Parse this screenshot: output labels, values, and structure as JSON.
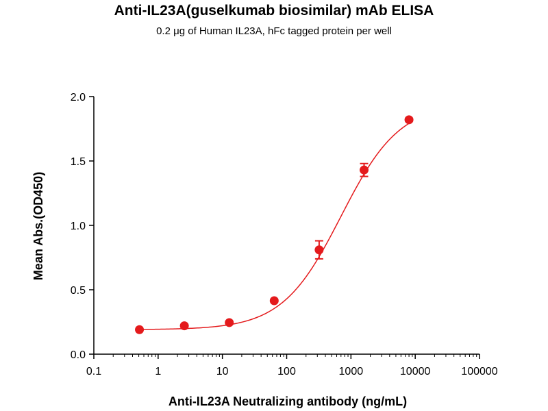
{
  "chart_data": {
    "type": "scatter",
    "title": "Anti-IL23A(guselkumab biosimilar) mAb ELISA",
    "subtitle": "0.2 μg of Human IL23A, hFc tagged protein per well",
    "xlabel": "Anti-IL23A Neutralizing antibody (ng/mL)",
    "ylabel": "Mean Abs.(OD450)",
    "x_scale": "log",
    "xlim": [
      0.1,
      100000
    ],
    "ylim": [
      0.0,
      2.0
    ],
    "x_tick_labels": [
      "0.1",
      "1",
      "10",
      "100",
      "1000",
      "10000",
      "100000"
    ],
    "y_tick_labels": [
      "0.0",
      "0.5",
      "1.0",
      "1.5",
      "2.0"
    ],
    "grid": false,
    "series": [
      {
        "color": "#e41a1c",
        "x": [
          0.512,
          2.56,
          12.8,
          64,
          320,
          1600,
          8000
        ],
        "y": [
          0.19,
          0.22,
          0.245,
          0.415,
          0.81,
          1.43,
          1.82
        ],
        "error": [
          0.01,
          0.01,
          0.01,
          0.01,
          0.07,
          0.05,
          0.01
        ],
        "fit": "4PL sigmoid",
        "fit_params": {
          "bottom": 0.19,
          "top": 1.95,
          "ec50": 700,
          "hill": 0.95
        }
      }
    ]
  }
}
